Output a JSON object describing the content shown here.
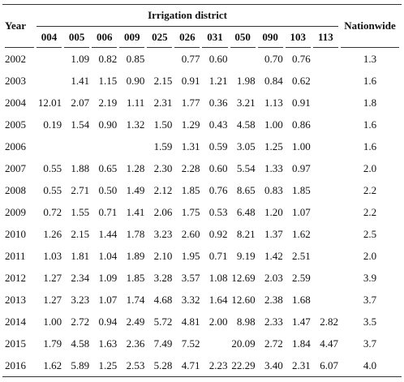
{
  "header": {
    "year": "Year",
    "group": "Irrigation district",
    "districts": [
      "004",
      "005",
      "006",
      "009",
      "025",
      "026",
      "031",
      "050",
      "090",
      "103",
      "113"
    ],
    "nationwide": "Nationwide"
  },
  "rows": [
    {
      "year": "2002",
      "cells": [
        null,
        "1.09",
        "0.82",
        "0.85",
        null,
        "0.77",
        "0.60",
        null,
        "0.70",
        "0.76",
        null
      ],
      "nationwide": "1.3"
    },
    {
      "year": "2003",
      "cells": [
        null,
        "1.41",
        "1.15",
        "0.90",
        "2.15",
        "0.91",
        "1.21",
        "1.98",
        "0.84",
        "0.62",
        null
      ],
      "nationwide": "1.6"
    },
    {
      "year": "2004",
      "cells": [
        "12.01",
        "2.07",
        "2.19",
        "1.11",
        "2.31",
        "1.77",
        "0.36",
        "3.21",
        "1.13",
        "0.91",
        null
      ],
      "nationwide": "1.8"
    },
    {
      "year": "2005",
      "cells": [
        "0.19",
        "1.54",
        "0.90",
        "1.32",
        "1.50",
        "1.29",
        "0.43",
        "4.58",
        "1.00",
        "0.86",
        null
      ],
      "nationwide": "1.6"
    },
    {
      "year": "2006",
      "cells": [
        null,
        null,
        null,
        null,
        "1.59",
        "1.31",
        "0.59",
        "3.05",
        "1.25",
        "1.00",
        null
      ],
      "nationwide": "1.6"
    },
    {
      "year": "2007",
      "cells": [
        "0.55",
        "1.88",
        "0.65",
        "1.28",
        "2.30",
        "2.28",
        "0.60",
        "5.54",
        "1.33",
        "0.97",
        null
      ],
      "nationwide": "2.0"
    },
    {
      "year": "2008",
      "cells": [
        "0.55",
        "2.71",
        "0.50",
        "1.49",
        "2.12",
        "1.85",
        "0.76",
        "8.65",
        "0.83",
        "1.85",
        null
      ],
      "nationwide": "2.2"
    },
    {
      "year": "2009",
      "cells": [
        "0.72",
        "1.55",
        "0.71",
        "1.41",
        "2.06",
        "1.75",
        "0.53",
        "6.48",
        "1.20",
        "1.07",
        null
      ],
      "nationwide": "2.2"
    },
    {
      "year": "2010",
      "cells": [
        "1.26",
        "2.15",
        "1.44",
        "1.78",
        "3.23",
        "2.60",
        "0.92",
        "8.21",
        "1.37",
        "1.62",
        null
      ],
      "nationwide": "2.5"
    },
    {
      "year": "2011",
      "cells": [
        "1.03",
        "1.81",
        "1.04",
        "1.89",
        "2.10",
        "1.95",
        "0.71",
        "9.19",
        "1.42",
        "2.51",
        null
      ],
      "nationwide": "2.0"
    },
    {
      "year": "2012",
      "cells": [
        "1.27",
        "2.34",
        "1.09",
        "1.85",
        "3.28",
        "3.57",
        "1.08",
        "12.69",
        "2.03",
        "2.59",
        null
      ],
      "nationwide": "3.9"
    },
    {
      "year": "2013",
      "cells": [
        "1.27",
        "3.23",
        "1.07",
        "1.74",
        "4.68",
        "3.32",
        "1.64",
        "12.60",
        "2.38",
        "1.68",
        null
      ],
      "nationwide": "3.7"
    },
    {
      "year": "2014",
      "cells": [
        "1.00",
        "2.72",
        "0.94",
        "2.49",
        "5.72",
        "4.81",
        "2.00",
        "8.98",
        "2.33",
        "1.47",
        "2.82"
      ],
      "nationwide": "3.5"
    },
    {
      "year": "2015",
      "cells": [
        "1.79",
        "4.58",
        "1.63",
        "2.36",
        "7.49",
        "7.52",
        null,
        "20.09",
        "2.72",
        "1.84",
        "4.47"
      ],
      "nationwide": "3.7"
    },
    {
      "year": "2016",
      "cells": [
        "1.62",
        "5.89",
        "1.25",
        "2.53",
        "5.28",
        "4.71",
        "2.23",
        "22.29",
        "3.40",
        "2.31",
        "6.07"
      ],
      "nationwide": "4.0"
    }
  ]
}
